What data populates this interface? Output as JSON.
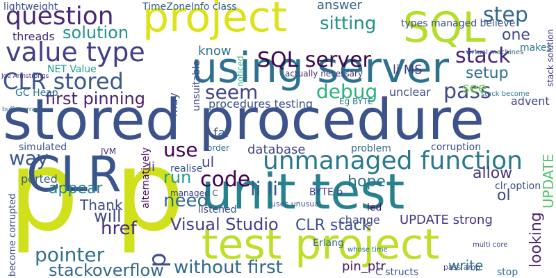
{
  "words": [
    "stored procedure",
    "unit test",
    "p p",
    "using server",
    "CLR",
    "test project",
    "project",
    "SQL",
    "question",
    "value type",
    "unmanaged function",
    "SQL server",
    "CLR stored",
    "first pinning",
    "seem",
    "debug",
    "pass",
    "stack",
    "step",
    "one",
    "answer",
    "solution",
    "sitting",
    "use",
    "run",
    "code",
    "li li",
    "way",
    "need",
    "appear",
    "Thank",
    "href",
    "will",
    "pointer",
    "stackoverflow",
    "Visual Studio",
    "CLR stack",
    "without first",
    "hope",
    "allow",
    "setup",
    "see",
    "database",
    "problem",
    "procedures testing",
    "know",
    "threads",
    "lightweight",
    "TimeZoneInfo class",
    "types managed believe",
    "NET Value",
    "GC Heap",
    "UPDATE strong",
    "pin_ptr",
    "write",
    "Erlang",
    "change",
    "C structs",
    "stop",
    "BYTE b",
    "led",
    "ul",
    "far",
    "realise",
    "order",
    "li",
    "ported",
    "simulated",
    "JVM",
    "ol",
    "clr option",
    "advent",
    "makes",
    "li MS",
    "unclear",
    "Eg BYTE",
    "corruption",
    "actually necessary",
    "listened",
    "managed C",
    "looking",
    "UPDATE",
    "become corrupted",
    "stack solution",
    "unsuitable",
    "alternatively",
    "noticed",
    "may",
    "p",
    "Joe Armstrongs",
    "buffer arrays",
    "virtual machines",
    "stack become",
    "multi core",
    "pass amp",
    "whose time",
    "uses unusual"
  ]
}
